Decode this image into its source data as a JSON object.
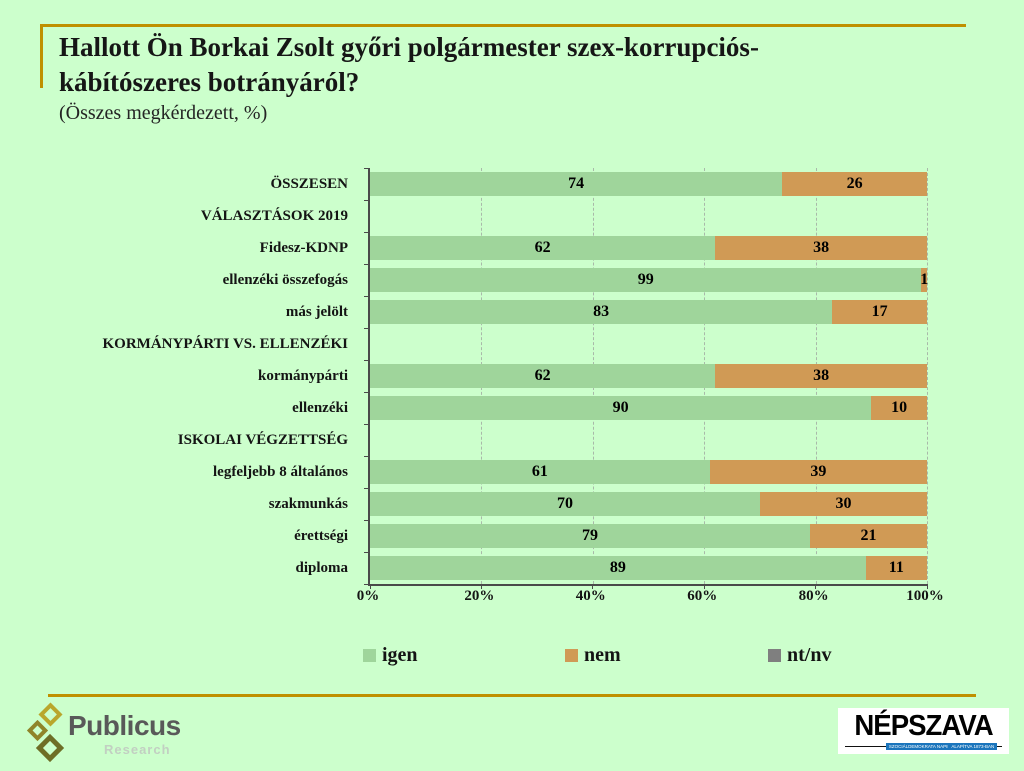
{
  "page": {
    "background_color": "#ccffcc",
    "accent_line_color": "#bf9000"
  },
  "header": {
    "title_lines": [
      "Hallott Ön Borkai Zsolt győri polgármester szex-korrupciós-",
      "kábítószeres botrányáról?"
    ],
    "subtitle": "(Összes megkérdezett, %)"
  },
  "chart_data": {
    "type": "bar",
    "orientation": "horizontal",
    "stacked": true,
    "title": "Hallott Ön Borkai Zsolt győri polgármester szex-korrupciós-kábítószeres botrányáról?",
    "subtitle": "(Összes megkérdezett, %)",
    "xlabel": "",
    "ylabel": "",
    "xlim": [
      0,
      100
    ],
    "x_ticks": [
      "0%",
      "20%",
      "40%",
      "60%",
      "80%",
      "100%"
    ],
    "grid": "dashed-vertical",
    "legend_position": "bottom",
    "categories": [
      "ÖSSZESEN",
      "VÁLASZTÁSOK 2019",
      "Fidesz-KDNP",
      "ellenzéki összefogás",
      "más jelölt",
      "KORMÁNYPÁRTI VS. ELLENZÉKI",
      "kormánypárti",
      "ellenzéki",
      "ISKOLAI VÉGZETTSÉG",
      "legfeljebb 8 általános",
      "szakmunkás",
      "érettségi",
      "diploma"
    ],
    "header_row_indexes": [
      1,
      5,
      8
    ],
    "series": [
      {
        "name": "igen",
        "color": "#9fd59b",
        "values": [
          74,
          null,
          62,
          99,
          83,
          null,
          62,
          90,
          null,
          61,
          70,
          79,
          89
        ]
      },
      {
        "name": "nem",
        "color": "#d09a55",
        "values": [
          26,
          null,
          38,
          1,
          17,
          null,
          38,
          10,
          null,
          39,
          30,
          21,
          11
        ]
      },
      {
        "name": "nt/nv",
        "color": "#7f7f7f",
        "values": [
          0,
          null,
          0,
          0,
          0,
          null,
          0,
          0,
          null,
          0,
          0,
          0,
          0
        ]
      }
    ]
  },
  "footer": {
    "publicus": {
      "name": "Publicus",
      "sub": "Research"
    },
    "nepszava": {
      "name": "NÉPSZAVA",
      "tagline_left": "SZOCIÁLDEMOKRATA NAPILAP",
      "tagline_right": "ALAPÍTVA 1873-BAN"
    }
  }
}
